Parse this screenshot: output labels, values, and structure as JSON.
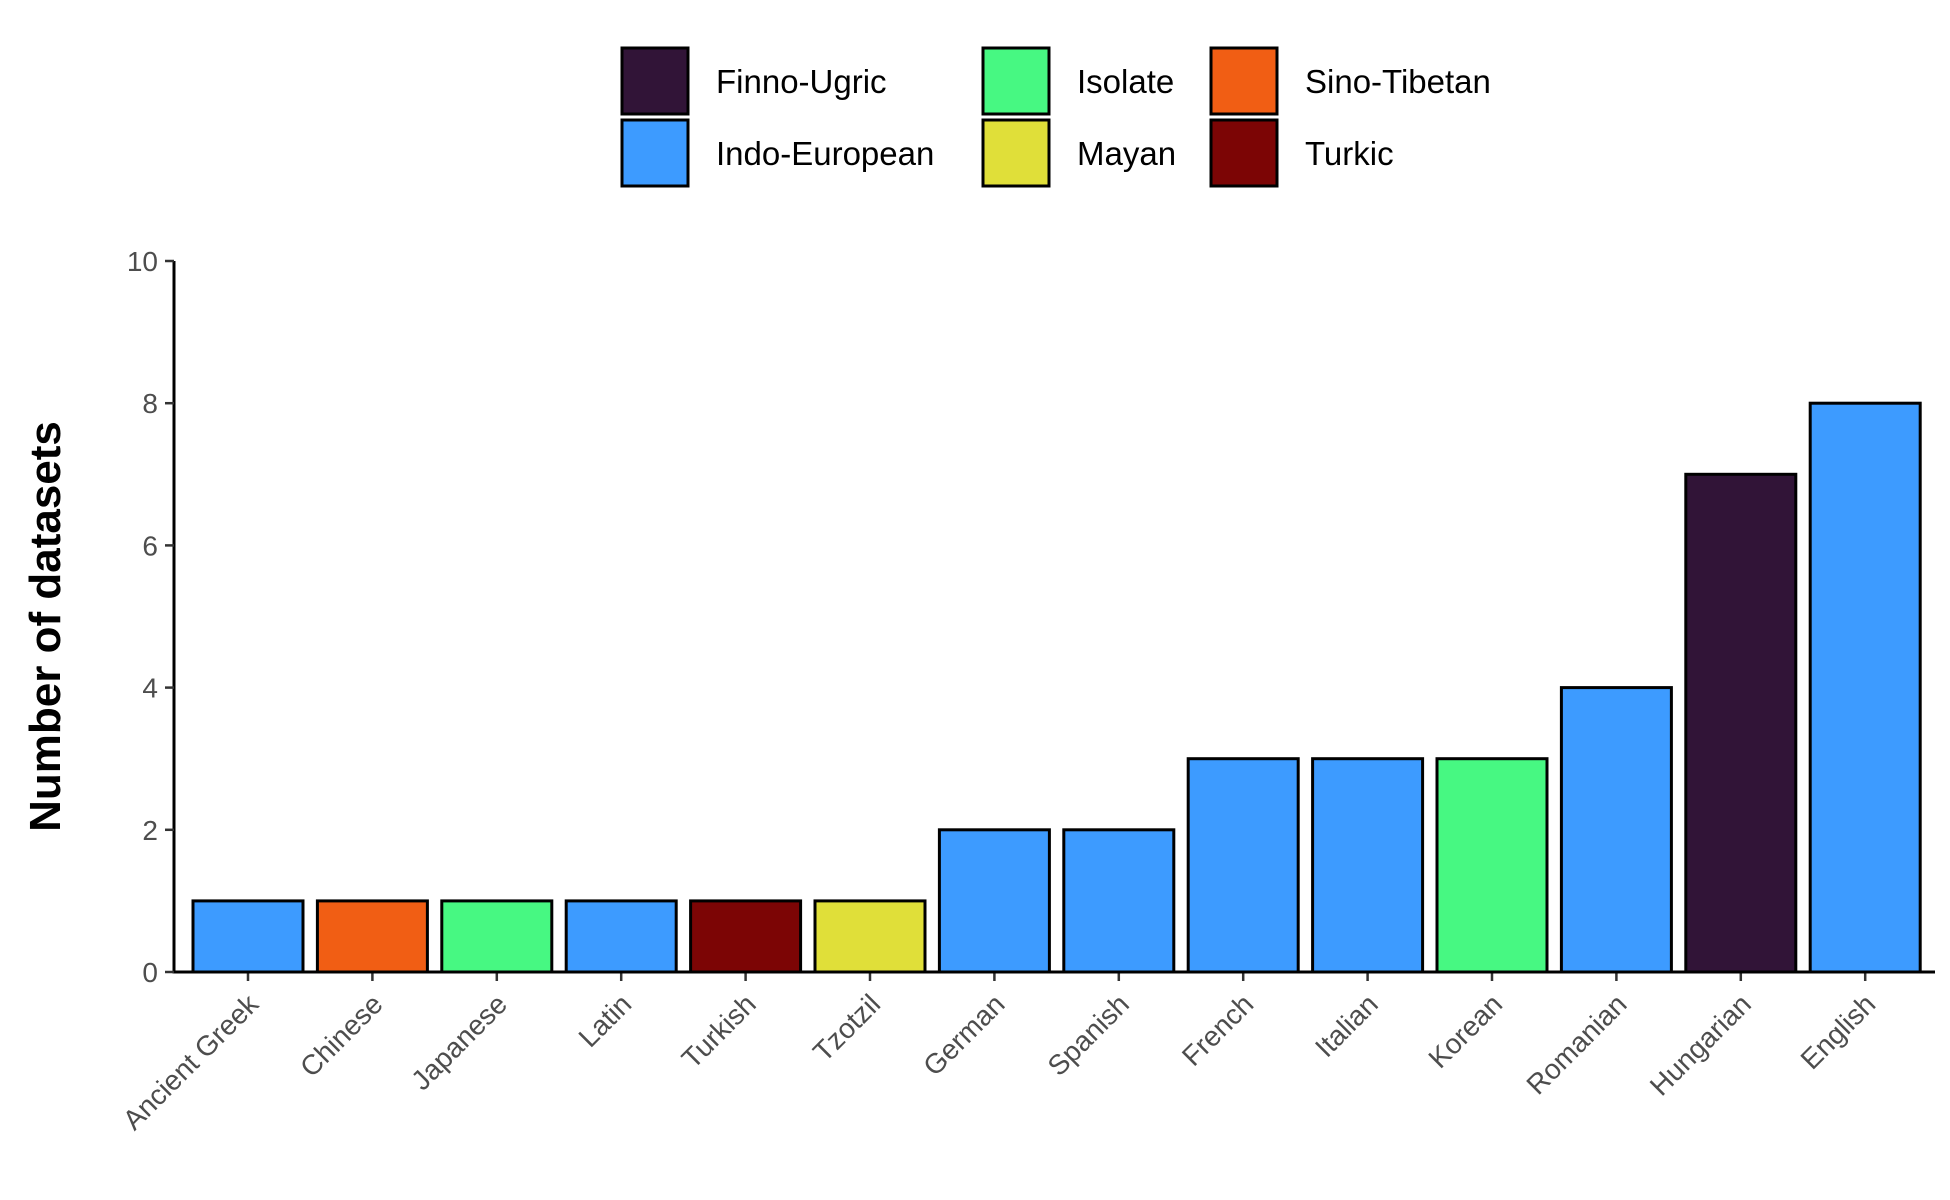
{
  "chart_data": {
    "type": "bar",
    "title": "",
    "xlabel": "",
    "ylabel": "Number of datasets",
    "ylim": [
      0,
      10
    ],
    "yticks": [
      0,
      2,
      4,
      6,
      8,
      10
    ],
    "grid": false,
    "legend_position": "top",
    "categories": [
      "Ancient Greek",
      "Chinese",
      "Japanese",
      "Latin",
      "Turkish",
      "Tzotzil",
      "German",
      "Spanish",
      "French",
      "Italian",
      "Korean",
      "Romanian",
      "Hungarian",
      "English"
    ],
    "values": [
      1,
      1,
      1,
      1,
      1,
      1,
      2,
      2,
      3,
      3,
      3,
      4,
      7,
      8
    ],
    "groups": [
      "Indo-European",
      "Sino-Tibetan",
      "Isolate",
      "Indo-European",
      "Turkic",
      "Mayan",
      "Indo-European",
      "Indo-European",
      "Indo-European",
      "Indo-European",
      "Isolate",
      "Indo-European",
      "Finno-Ugric",
      "Indo-European"
    ],
    "legend": [
      {
        "name": "Finno-Ugric",
        "color": "#311437"
      },
      {
        "name": "Indo-European",
        "color": "#3d9bff"
      },
      {
        "name": "Isolate",
        "color": "#47f882"
      },
      {
        "name": "Mayan",
        "color": "#e0df39"
      },
      {
        "name": "Sino-Tibetan",
        "color": "#f15e14"
      },
      {
        "name": "Turkic",
        "color": "#7c0505"
      }
    ]
  }
}
